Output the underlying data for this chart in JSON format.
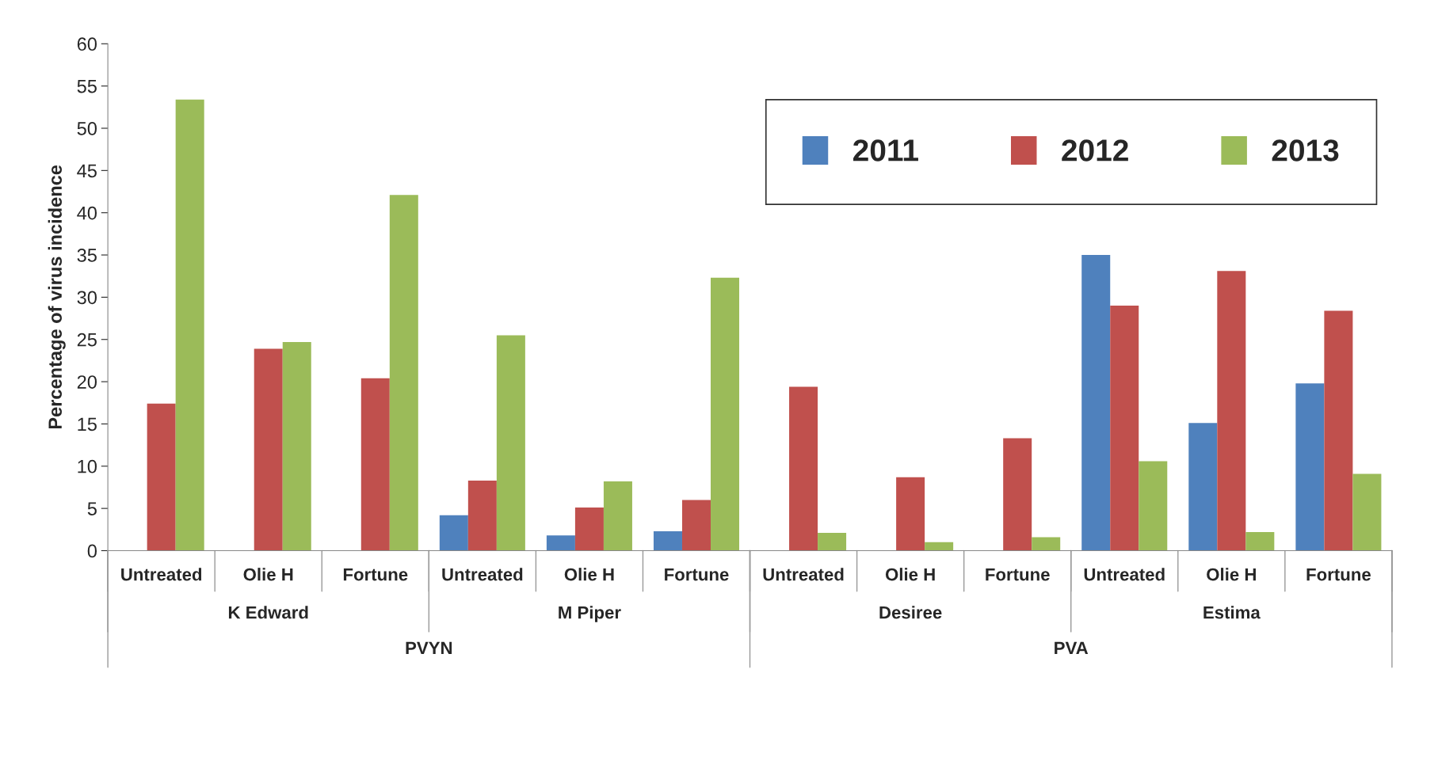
{
  "chart_data": {
    "type": "bar",
    "ylabel": "Percentage of virus incidence",
    "categories": [
      "Untreated",
      "Olie H",
      "Fortune",
      "Untreated",
      "Olie H",
      "Fortune",
      "Untreated",
      "Olie H",
      "Fortune",
      "Untreated",
      "Olie H",
      "Fortune"
    ],
    "series": [
      {
        "name": "2011",
        "color": "#4f81bd",
        "values": [
          0,
          0,
          0,
          4.2,
          1.8,
          2.3,
          0,
          0,
          0,
          35.0,
          15.1,
          19.8
        ]
      },
      {
        "name": "2012",
        "color": "#c0504d",
        "values": [
          17.4,
          23.9,
          20.4,
          8.3,
          5.1,
          6.0,
          19.4,
          8.7,
          13.3,
          29.0,
          33.1,
          28.4
        ]
      },
      {
        "name": "2013",
        "color": "#9bbb59",
        "values": [
          53.4,
          24.7,
          42.1,
          25.5,
          8.2,
          32.3,
          2.1,
          1.0,
          1.6,
          10.6,
          2.2,
          9.1
        ]
      }
    ],
    "annotations": [
      "K Edward",
      "M Piper",
      "Desiree",
      "Estima",
      "PVYN",
      "PVA"
    ],
    "ylim": [
      0,
      60
    ],
    "yticks": [
      0,
      5,
      10,
      15,
      20,
      25,
      30,
      35,
      40,
      45,
      50,
      55,
      60
    ],
    "legend": "top right",
    "grid": false
  }
}
